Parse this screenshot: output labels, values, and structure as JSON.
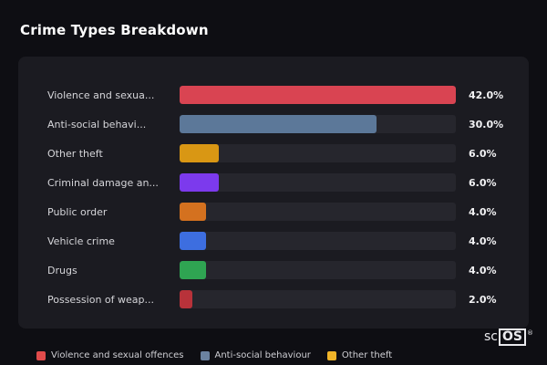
{
  "title": "Crime Types Breakdown",
  "chart_data": {
    "type": "bar",
    "orientation": "horizontal",
    "title": "Crime Types Breakdown",
    "categories": [
      "Violence and sexua...",
      "Anti-social behavi...",
      "Other theft",
      "Criminal damage an...",
      "Public order",
      "Vehicle crime",
      "Drugs",
      "Possession of weap..."
    ],
    "values": [
      42.0,
      30.0,
      6.0,
      6.0,
      4.0,
      4.0,
      4.0,
      2.0
    ],
    "value_labels": [
      "42.0%",
      "30.0%",
      "6.0%",
      "6.0%",
      "4.0%",
      "4.0%",
      "4.0%",
      "2.0%"
    ],
    "bar_colors": [
      "#d94452",
      "#5c7899",
      "#d99714",
      "#7c3aed",
      "#d4711f",
      "#3d6ee0",
      "#2fa452",
      "#b8323a"
    ],
    "max_value": 42.0,
    "xlabel": "",
    "ylabel": "",
    "grid": false,
    "legend_position": "bottom"
  },
  "legend": {
    "items": [
      {
        "label": "Violence and sexual offences",
        "color": "#e04b4b"
      },
      {
        "label": "Anti-social behaviour",
        "color": "#6b82a0"
      },
      {
        "label": "Other theft",
        "color": "#f0b429"
      }
    ]
  },
  "logo": {
    "prefix": "sc",
    "boxed": "OS",
    "registered": "®"
  },
  "colors": {
    "background": "#0e0e13",
    "card": "#1b1b21",
    "track": "#26262d",
    "label_text": "#d6d6da",
    "value_text": "#f2f2f4"
  }
}
